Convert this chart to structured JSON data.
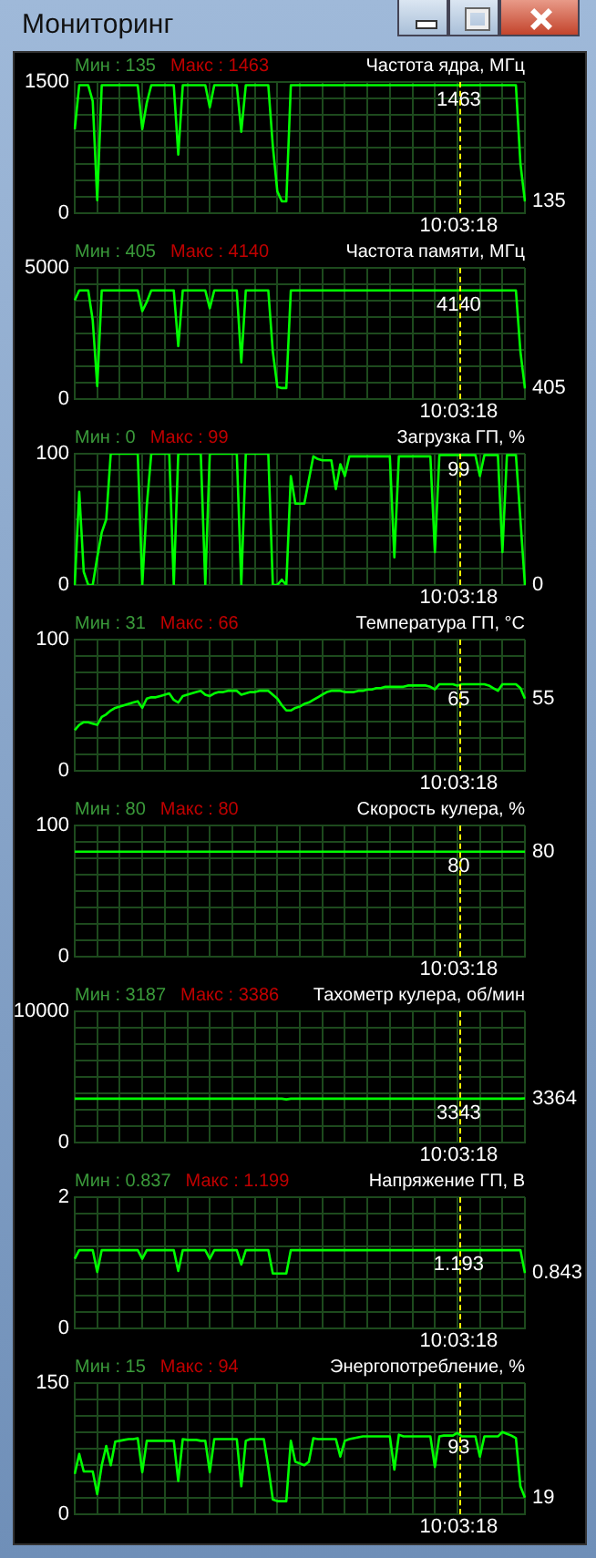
{
  "chart_data": [
    {
      "type": "line",
      "subtitle": "Мониторинг",
      "title": "Частота ядра, МГц",
      "annotations": [
        "Мин : 135",
        "Макс : 1463",
        "10:03:18",
        {
          "text": "1463",
          "y": 1463
        },
        "135"
      ],
      "categories": [
        null,
        null,
        null,
        null,
        null,
        null,
        null,
        null,
        null,
        null,
        null,
        null,
        null,
        null,
        null,
        null,
        null,
        null,
        null,
        null,
        null,
        null,
        null,
        null,
        null,
        null,
        null,
        null,
        null,
        null,
        null,
        null,
        null,
        null,
        null,
        null,
        null,
        null,
        null,
        null,
        null,
        null,
        null,
        null,
        null,
        null,
        null,
        null,
        null,
        null,
        null,
        null,
        null,
        null,
        null,
        null,
        null,
        null,
        null,
        null,
        null,
        null,
        null,
        null,
        null,
        null,
        null,
        null,
        null,
        null,
        null,
        null,
        null,
        null,
        null,
        null,
        null,
        null,
        null,
        null,
        null,
        null,
        null,
        null,
        null,
        null,
        null,
        null,
        null,
        null,
        null,
        null,
        null,
        null,
        null,
        null,
        null,
        null,
        null,
        null,
        null
      ],
      "ylim": [
        0,
        1500
      ],
      "yticks": [
        0,
        {
          "value": 187.5,
          "label": null
        },
        {
          "value": 375,
          "label": null
        },
        {
          "value": 562.5,
          "label": null
        },
        {
          "value": 750,
          "label": null
        },
        {
          "value": 937.5,
          "label": null
        },
        {
          "value": 1125,
          "label": null
        },
        {
          "value": 1312.5,
          "label": null
        },
        1500
      ],
      "tick_labels": "y",
      "grid": true,
      "legend": false,
      "marker": "none",
      "line_style": "solid",
      "series": [
        {
          "color": "#00ff00",
          "values": [
            960,
            1463,
            1463,
            1463,
            1280,
            150,
            1463,
            1463,
            1463,
            1463,
            1463,
            1463,
            1463,
            1463,
            1463,
            960,
            1260,
            1463,
            1463,
            1463,
            1463,
            1463,
            1463,
            670,
            1463,
            1463,
            1463,
            1463,
            1463,
            1463,
            1210,
            1463,
            1463,
            1463,
            1463,
            1463,
            1463,
            930,
            1463,
            1463,
            1463,
            1463,
            1463,
            1463,
            770,
            250,
            135,
            135,
            1463,
            1463,
            1463,
            1463,
            1463,
            1463,
            1463,
            1463,
            1463,
            1463,
            1463,
            1463,
            1463,
            1463,
            1463,
            1463,
            1463,
            1463,
            1463,
            1463,
            1463,
            1463,
            1463,
            1463,
            1463,
            1463,
            1463,
            1463,
            1463,
            1463,
            1463,
            1463,
            1463,
            1463,
            1463,
            1463,
            1463,
            1463,
            1463,
            1463,
            1463,
            1463,
            1463,
            1463,
            1463,
            1463,
            1463,
            1463,
            1463,
            1463,
            1463,
            570,
            135
          ]
        }
      ]
    },
    {
      "type": "line",
      "title": "Частота памяти, МГц",
      "annotations": [
        "Мин : 405",
        "Макс : 4140",
        "10:03:18",
        {
          "text": "4140",
          "y": 4140
        },
        "405"
      ],
      "categories": [
        null,
        null,
        null,
        null,
        null,
        null,
        null,
        null,
        null,
        null,
        null,
        null,
        null,
        null,
        null,
        null,
        null,
        null,
        null,
        null,
        null,
        null,
        null,
        null,
        null,
        null,
        null,
        null,
        null,
        null,
        null,
        null,
        null,
        null,
        null,
        null,
        null,
        null,
        null,
        null,
        null,
        null,
        null,
        null,
        null,
        null,
        null,
        null,
        null,
        null,
        null,
        null,
        null,
        null,
        null,
        null,
        null,
        null,
        null,
        null,
        null,
        null,
        null,
        null,
        null,
        null,
        null,
        null,
        null,
        null,
        null,
        null,
        null,
        null,
        null,
        null,
        null,
        null,
        null,
        null,
        null,
        null,
        null,
        null,
        null,
        null,
        null,
        null,
        null,
        null,
        null,
        null,
        null,
        null,
        null,
        null,
        null,
        null,
        null,
        null,
        null
      ],
      "ylim": [
        0,
        5000
      ],
      "yticks": [
        0,
        {
          "value": 625,
          "label": null
        },
        {
          "value": 1250,
          "label": null
        },
        {
          "value": 1875,
          "label": null
        },
        {
          "value": 2500,
          "label": null
        },
        {
          "value": 3125,
          "label": null
        },
        {
          "value": 3750,
          "label": null
        },
        {
          "value": 4375,
          "label": null
        },
        5000
      ],
      "tick_labels": "y",
      "grid": true,
      "legend": false,
      "marker": "none",
      "line_style": "solid",
      "series": [
        {
          "color": "#00ff00",
          "values": [
            3770,
            4140,
            4140,
            4140,
            3000,
            500,
            4140,
            4140,
            4140,
            4140,
            4140,
            4140,
            4140,
            4140,
            4140,
            3350,
            3700,
            4140,
            4140,
            4140,
            4140,
            4140,
            4140,
            2020,
            4140,
            4140,
            4140,
            4140,
            4140,
            4140,
            3460,
            4140,
            4140,
            4140,
            4140,
            4140,
            4140,
            1400,
            4140,
            4140,
            4140,
            4140,
            4140,
            4140,
            1810,
            470,
            420,
            420,
            4140,
            4140,
            4140,
            4140,
            4140,
            4140,
            4140,
            4140,
            4140,
            4140,
            4140,
            4140,
            4140,
            4140,
            4140,
            4140,
            4140,
            4140,
            4140,
            4140,
            4140,
            4140,
            4140,
            4140,
            4140,
            4140,
            4140,
            4140,
            4140,
            4140,
            4140,
            4140,
            4140,
            4140,
            4140,
            4140,
            4140,
            4140,
            4140,
            4140,
            4140,
            4140,
            4140,
            4140,
            4140,
            4140,
            4140,
            4140,
            4140,
            4140,
            4140,
            1810,
            405
          ]
        }
      ]
    },
    {
      "type": "line",
      "title": "Загрузка ГП, %",
      "annotations": [
        "Мин : 0",
        "Макс : 99",
        "10:03:18",
        {
          "text": "99",
          "y": 99
        },
        "0"
      ],
      "categories": [
        null,
        null,
        null,
        null,
        null,
        null,
        null,
        null,
        null,
        null,
        null,
        null,
        null,
        null,
        null,
        null,
        null,
        null,
        null,
        null,
        null,
        null,
        null,
        null,
        null,
        null,
        null,
        null,
        null,
        null,
        null,
        null,
        null,
        null,
        null,
        null,
        null,
        null,
        null,
        null,
        null,
        null,
        null,
        null,
        null,
        null,
        null,
        null,
        null,
        null,
        null,
        null,
        null,
        null,
        null,
        null,
        null,
        null,
        null,
        null,
        null,
        null,
        null,
        null,
        null,
        null,
        null,
        null,
        null,
        null,
        null,
        null,
        null,
        null,
        null,
        null,
        null,
        null,
        null,
        null,
        null,
        null,
        null,
        null,
        null,
        null,
        null,
        null,
        null,
        null,
        null,
        null,
        null,
        null,
        null,
        null,
        null,
        null,
        null,
        null,
        null
      ],
      "ylim": [
        0,
        100
      ],
      "yticks": [
        0,
        {
          "value": 12.5,
          "label": null
        },
        {
          "value": 25,
          "label": null
        },
        {
          "value": 37.5,
          "label": null
        },
        {
          "value": 50,
          "label": null
        },
        {
          "value": 62.5,
          "label": null
        },
        {
          "value": 75,
          "label": null
        },
        {
          "value": 87.5,
          "label": null
        },
        100
      ],
      "tick_labels": "y",
      "grid": true,
      "legend": false,
      "marker": "none",
      "line_style": "solid",
      "series": [
        {
          "color": "#00ff00",
          "values": [
            0,
            71,
            10,
            0,
            0,
            21,
            40,
            50,
            100,
            100,
            100,
            100,
            100,
            100,
            100,
            0,
            60,
            100,
            100,
            100,
            100,
            100,
            0,
            100,
            100,
            100,
            100,
            100,
            100,
            0,
            100,
            100,
            100,
            100,
            100,
            100,
            100,
            0,
            100,
            100,
            100,
            100,
            100,
            100,
            0,
            0,
            4,
            0,
            83,
            62,
            62,
            62,
            80,
            98,
            96,
            95,
            95,
            95,
            73,
            92,
            83,
            98,
            98,
            98,
            98,
            98,
            98,
            98,
            98,
            98,
            98,
            21,
            98,
            98,
            98,
            98,
            98,
            98,
            98,
            98,
            25,
            99,
            99,
            99,
            99,
            99,
            99,
            99,
            99,
            99,
            83,
            99,
            99,
            99,
            99,
            25,
            99,
            99,
            99,
            50,
            0
          ]
        }
      ]
    },
    {
      "type": "line",
      "title": "Температура ГП, °C",
      "annotations": [
        "Мин : 31",
        "Макс : 66",
        "10:03:18",
        {
          "text": "65",
          "y": 65
        },
        "55"
      ],
      "categories": [
        null,
        null,
        null,
        null,
        null,
        null,
        null,
        null,
        null,
        null,
        null,
        null,
        null,
        null,
        null,
        null,
        null,
        null,
        null,
        null,
        null,
        null,
        null,
        null,
        null,
        null,
        null,
        null,
        null,
        null,
        null,
        null,
        null,
        null,
        null,
        null,
        null,
        null,
        null,
        null,
        null,
        null,
        null,
        null,
        null,
        null,
        null,
        null,
        null,
        null,
        null,
        null,
        null,
        null,
        null,
        null,
        null,
        null,
        null,
        null,
        null,
        null,
        null,
        null,
        null,
        null,
        null,
        null,
        null,
        null,
        null,
        null,
        null,
        null,
        null,
        null,
        null,
        null,
        null,
        null,
        null,
        null,
        null,
        null,
        null,
        null,
        null,
        null,
        null,
        null,
        null,
        null,
        null,
        null,
        null,
        null,
        null,
        null,
        null,
        null,
        null
      ],
      "ylim": [
        0,
        100
      ],
      "yticks": [
        0,
        {
          "value": 12.5,
          "label": null
        },
        {
          "value": 25,
          "label": null
        },
        {
          "value": 37.5,
          "label": null
        },
        {
          "value": 50,
          "label": null
        },
        {
          "value": 62.5,
          "label": null
        },
        {
          "value": 75,
          "label": null
        },
        {
          "value": 87.5,
          "label": null
        },
        100
      ],
      "tick_labels": "y",
      "grid": true,
      "legend": false,
      "marker": "none",
      "line_style": "solid",
      "series": [
        {
          "color": "#00ff00",
          "values": [
            31,
            35,
            37,
            37,
            36,
            35,
            41,
            43,
            46,
            48,
            49,
            50,
            51,
            52,
            53,
            48,
            55,
            56,
            56,
            57,
            58,
            59,
            54,
            52,
            57,
            58,
            59,
            60,
            61,
            58,
            57,
            59,
            60,
            60,
            61,
            61,
            61,
            58,
            59,
            60,
            60,
            61,
            61,
            61,
            58,
            55,
            50,
            46,
            46,
            48,
            49,
            51,
            52,
            54,
            56,
            58,
            60,
            61,
            61,
            61,
            60,
            60,
            60,
            61,
            61,
            62,
            62,
            63,
            63,
            64,
            64,
            64,
            64,
            64,
            65,
            65,
            65,
            65,
            65,
            64,
            62,
            66,
            66,
            66,
            66,
            65,
            66,
            66,
            66,
            66,
            66,
            66,
            65,
            63,
            61,
            66,
            66,
            66,
            66,
            63,
            55
          ]
        }
      ]
    },
    {
      "type": "line",
      "title": "Скорость кулера, %",
      "annotations": [
        "Мин : 80",
        "Макс : 80",
        "10:03:18",
        "80",
        "80"
      ],
      "categories": [
        null,
        null,
        null,
        null,
        null,
        null,
        null,
        null,
        null,
        null,
        null,
        null,
        null,
        null,
        null,
        null,
        null,
        null,
        null,
        null,
        null,
        null,
        null,
        null,
        null,
        null,
        null,
        null,
        null,
        null,
        null,
        null,
        null,
        null,
        null,
        null,
        null,
        null,
        null,
        null,
        null,
        null,
        null,
        null,
        null,
        null,
        null,
        null,
        null,
        null,
        null,
        null,
        null,
        null,
        null,
        null,
        null,
        null,
        null,
        null,
        null,
        null,
        null,
        null,
        null,
        null,
        null,
        null,
        null,
        null,
        null,
        null,
        null,
        null,
        null,
        null,
        null,
        null,
        null,
        null,
        null,
        null,
        null,
        null,
        null,
        null,
        null,
        null,
        null,
        null,
        null,
        null,
        null,
        null,
        null,
        null,
        null,
        null,
        null,
        null,
        null
      ],
      "ylim": [
        0,
        100
      ],
      "yticks": [
        0,
        {
          "value": 12.5,
          "label": null
        },
        {
          "value": 25,
          "label": null
        },
        {
          "value": 37.5,
          "label": null
        },
        {
          "value": 50,
          "label": null
        },
        {
          "value": 62.5,
          "label": null
        },
        {
          "value": 75,
          "label": null
        },
        {
          "value": 87.5,
          "label": null
        },
        100
      ],
      "tick_labels": "y",
      "grid": true,
      "legend": false,
      "marker": "none",
      "line_style": "solid",
      "series": [
        {
          "color": "#00ff00",
          "values": [
            80,
            80,
            80,
            80,
            80,
            80,
            80,
            80,
            80,
            80,
            80,
            80,
            80,
            80,
            80,
            80,
            80,
            80,
            80,
            80,
            80,
            80,
            80,
            80,
            80,
            80,
            80,
            80,
            80,
            80,
            80,
            80,
            80,
            80,
            80,
            80,
            80,
            80,
            80,
            80,
            80,
            80,
            80,
            80,
            80,
            80,
            80,
            80,
            80,
            80,
            80,
            80,
            80,
            80,
            80,
            80,
            80,
            80,
            80,
            80,
            80,
            80,
            80,
            80,
            80,
            80,
            80,
            80,
            80,
            80,
            80,
            80,
            80,
            80,
            80,
            80,
            80,
            80,
            80,
            80,
            80,
            80,
            80,
            80,
            80,
            80,
            80,
            80,
            80,
            80,
            80,
            80,
            80,
            80,
            80,
            80,
            80,
            80,
            80,
            80,
            80
          ]
        }
      ]
    },
    {
      "type": "line",
      "title": "Тахометр кулера, об/мин",
      "annotations": [
        "Мин : 3187",
        "Макс : 3386",
        "10:03:18",
        {
          "text": "3343",
          "y": 3343
        },
        "3364"
      ],
      "categories": [
        null,
        null,
        null,
        null,
        null,
        null,
        null,
        null,
        null,
        null,
        null,
        null,
        null,
        null,
        null,
        null,
        null,
        null,
        null,
        null,
        null,
        null,
        null,
        null,
        null,
        null,
        null,
        null,
        null,
        null,
        null,
        null,
        null,
        null,
        null,
        null,
        null,
        null,
        null,
        null,
        null,
        null,
        null,
        null,
        null,
        null,
        null,
        null,
        null,
        null,
        null,
        null,
        null,
        null,
        null,
        null,
        null,
        null,
        null,
        null,
        null,
        null,
        null,
        null,
        null,
        null,
        null,
        null,
        null,
        null,
        null,
        null,
        null,
        null,
        null,
        null,
        null,
        null,
        null,
        null,
        null,
        null,
        null,
        null,
        null,
        null,
        null,
        null,
        null,
        null,
        null,
        null,
        null,
        null,
        null,
        null,
        null,
        null,
        null,
        null,
        null
      ],
      "ylim": [
        0,
        10000
      ],
      "yticks": [
        0,
        {
          "value": 1250,
          "label": null
        },
        {
          "value": 2500,
          "label": null
        },
        {
          "value": 3750,
          "label": null
        },
        {
          "value": 5000,
          "label": null
        },
        {
          "value": 6250,
          "label": null
        },
        {
          "value": 7500,
          "label": null
        },
        {
          "value": 8750,
          "label": null
        },
        10000
      ],
      "tick_labels": "y",
      "grid": true,
      "legend": false,
      "marker": "none",
      "line_style": "solid",
      "series": [
        {
          "color": "#00ff00",
          "values": [
            3343,
            3343,
            3343,
            3343,
            3343,
            3343,
            3343,
            3343,
            3343,
            3343,
            3343,
            3343,
            3343,
            3343,
            3343,
            3343,
            3343,
            3343,
            3343,
            3343,
            3343,
            3343,
            3343,
            3343,
            3343,
            3343,
            3343,
            3343,
            3343,
            3343,
            3343,
            3343,
            3343,
            3343,
            3343,
            3343,
            3343,
            3343,
            3343,
            3343,
            3343,
            3343,
            3343,
            3343,
            3343,
            3343,
            3343,
            3290,
            3343,
            3343,
            3343,
            3343,
            3343,
            3343,
            3343,
            3343,
            3343,
            3343,
            3343,
            3343,
            3343,
            3343,
            3343,
            3343,
            3343,
            3343,
            3343,
            3343,
            3343,
            3343,
            3343,
            3343,
            3343,
            3343,
            3343,
            3343,
            3343,
            3343,
            3343,
            3343,
            3343,
            3343,
            3343,
            3343,
            3343,
            3343,
            3343,
            3343,
            3343,
            3343,
            3343,
            3343,
            3343,
            3343,
            3343,
            3343,
            3343,
            3343,
            3343,
            3343,
            3364
          ]
        }
      ]
    },
    {
      "type": "line",
      "title": "Напряжение ГП, В",
      "annotations": [
        "Мин : 0.837",
        "Макс : 1.199",
        "10:03:18",
        {
          "text": "1.193",
          "y": 1.193
        },
        "0.843"
      ],
      "categories": [
        null,
        null,
        null,
        null,
        null,
        null,
        null,
        null,
        null,
        null,
        null,
        null,
        null,
        null,
        null,
        null,
        null,
        null,
        null,
        null,
        null,
        null,
        null,
        null,
        null,
        null,
        null,
        null,
        null,
        null,
        null,
        null,
        null,
        null,
        null,
        null,
        null,
        null,
        null,
        null,
        null,
        null,
        null,
        null,
        null,
        null,
        null,
        null,
        null,
        null,
        null,
        null,
        null,
        null,
        null,
        null,
        null,
        null,
        null,
        null,
        null,
        null,
        null,
        null,
        null,
        null,
        null,
        null,
        null,
        null,
        null,
        null,
        null,
        null,
        null,
        null,
        null,
        null,
        null,
        null,
        null,
        null,
        null,
        null,
        null,
        null,
        null,
        null,
        null,
        null,
        null,
        null,
        null,
        null,
        null,
        null,
        null,
        null,
        null,
        null,
        null
      ],
      "ylim": [
        0,
        2
      ],
      "yticks": [
        0,
        {
          "value": 0.25,
          "label": null
        },
        {
          "value": 0.5,
          "label": null
        },
        {
          "value": 0.75,
          "label": null
        },
        {
          "value": 1,
          "label": null
        },
        {
          "value": 1.25,
          "label": null
        },
        {
          "value": 1.5,
          "label": null
        },
        {
          "value": 1.75,
          "label": null
        },
        2
      ],
      "tick_labels": "y",
      "grid": true,
      "legend": false,
      "marker": "none",
      "line_style": "solid",
      "series": [
        {
          "color": "#00ff00",
          "values": [
            1.06,
            1.193,
            1.193,
            1.193,
            1.193,
            0.86,
            1.193,
            1.193,
            1.193,
            1.193,
            1.193,
            1.193,
            1.193,
            1.193,
            1.193,
            1.06,
            1.193,
            1.193,
            1.193,
            1.193,
            1.193,
            1.193,
            1.193,
            0.875,
            1.193,
            1.193,
            1.193,
            1.193,
            1.193,
            1.193,
            1.06,
            1.193,
            1.193,
            1.193,
            1.193,
            1.193,
            1.193,
            0.975,
            1.193,
            1.193,
            1.193,
            1.193,
            1.193,
            1.193,
            0.837,
            0.837,
            0.837,
            0.837,
            1.193,
            1.193,
            1.193,
            1.193,
            1.193,
            1.193,
            1.193,
            1.193,
            1.193,
            1.193,
            1.193,
            1.193,
            1.193,
            1.193,
            1.193,
            1.193,
            1.193,
            1.193,
            1.193,
            1.193,
            1.193,
            1.193,
            1.193,
            1.193,
            1.193,
            1.193,
            1.193,
            1.193,
            1.193,
            1.193,
            1.193,
            1.193,
            1.193,
            1.193,
            1.193,
            1.193,
            1.193,
            1.193,
            1.193,
            1.193,
            1.193,
            1.193,
            1.193,
            1.193,
            1.193,
            1.193,
            1.193,
            1.193,
            1.193,
            1.193,
            1.193,
            1.193,
            0.843
          ]
        }
      ]
    },
    {
      "type": "line",
      "title": "Энергопотребление, %",
      "annotations": [
        "Мин : 15",
        "Макс : 94",
        "10:03:18",
        {
          "text": "93",
          "y": 93
        },
        "19"
      ],
      "categories": [
        null,
        null,
        null,
        null,
        null,
        null,
        null,
        null,
        null,
        null,
        null,
        null,
        null,
        null,
        null,
        null,
        null,
        null,
        null,
        null,
        null,
        null,
        null,
        null,
        null,
        null,
        null,
        null,
        null,
        null,
        null,
        null,
        null,
        null,
        null,
        null,
        null,
        null,
        null,
        null,
        null,
        null,
        null,
        null,
        null,
        null,
        null,
        null,
        null,
        null,
        null,
        null,
        null,
        null,
        null,
        null,
        null,
        null,
        null,
        null,
        null,
        null,
        null,
        null,
        null,
        null,
        null,
        null,
        null,
        null,
        null,
        null,
        null,
        null,
        null,
        null,
        null,
        null,
        null,
        null,
        null,
        null,
        null,
        null,
        null,
        null,
        null,
        null,
        null,
        null,
        null,
        null,
        null,
        null,
        null,
        null,
        null,
        null,
        null,
        null,
        null
      ],
      "ylim": [
        0,
        150
      ],
      "yticks": [
        0,
        {
          "value": 18.75,
          "label": null
        },
        {
          "value": 37.5,
          "label": null
        },
        {
          "value": 56.25,
          "label": null
        },
        {
          "value": 75,
          "label": null
        },
        {
          "value": 93.75,
          "label": null
        },
        {
          "value": 112.5,
          "label": null
        },
        {
          "value": 131.25,
          "label": null
        },
        150
      ],
      "tick_labels": "y",
      "grid": true,
      "legend": false,
      "marker": "none",
      "line_style": "solid",
      "series": [
        {
          "color": "#00ff00",
          "values": [
            46,
            69,
            49,
            49,
            49,
            23,
            56,
            78,
            56,
            83,
            84,
            85,
            86,
            86,
            87,
            48,
            84,
            84,
            84,
            84,
            84,
            84,
            84,
            38,
            86,
            85,
            85,
            85,
            84,
            84,
            48,
            86,
            86,
            86,
            86,
            86,
            86,
            32,
            84,
            86,
            86,
            86,
            86,
            54,
            17,
            15,
            15,
            15,
            84,
            60,
            58,
            56,
            60,
            87,
            86,
            86,
            86,
            86,
            86,
            66,
            84,
            86,
            87,
            88,
            89,
            89,
            89,
            89,
            89,
            89,
            89,
            51,
            91,
            89,
            89,
            89,
            89,
            89,
            89,
            89,
            54,
            89,
            90,
            90,
            90,
            93,
            89,
            89,
            89,
            89,
            66,
            89,
            89,
            89,
            89,
            94,
            92,
            90,
            87,
            32,
            19
          ]
        }
      ]
    }
  ]
}
